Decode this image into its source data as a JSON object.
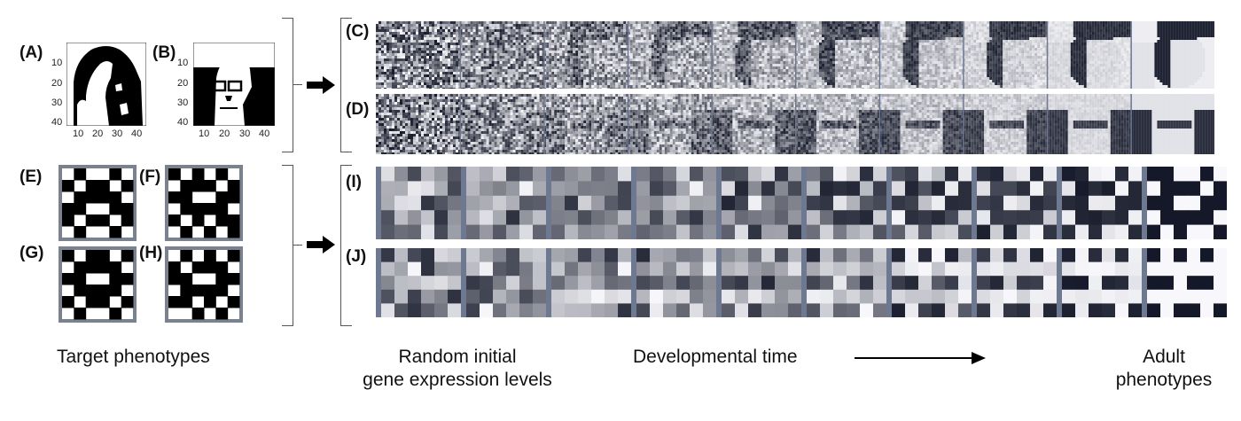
{
  "panels": {
    "A": "(A)",
    "B": "(B)",
    "C": "(C)",
    "D": "(D)",
    "E": "(E)",
    "F": "(F)",
    "G": "(G)",
    "H": "(H)",
    "I": "(I)",
    "J": "(J)"
  },
  "axis_ticks": {
    "y": [
      "10",
      "20",
      "30",
      "40"
    ],
    "x": [
      "10",
      "20",
      "30",
      "40"
    ]
  },
  "captions": {
    "target": "Target phenotypes",
    "random_line1": "Random initial",
    "random_line2": "gene expression levels",
    "developmental": "Developmental time",
    "adult_line1": "Adult",
    "adult_line2": "phenotypes"
  },
  "colors": {
    "frame": "#7a8290",
    "separator": "#6e7891",
    "ink": "#000000",
    "cool_grey": "#a9b6c6"
  },
  "icons": {
    "right_arrow": "block-arrow-right",
    "time_arrow": "long-arrow-right"
  }
}
